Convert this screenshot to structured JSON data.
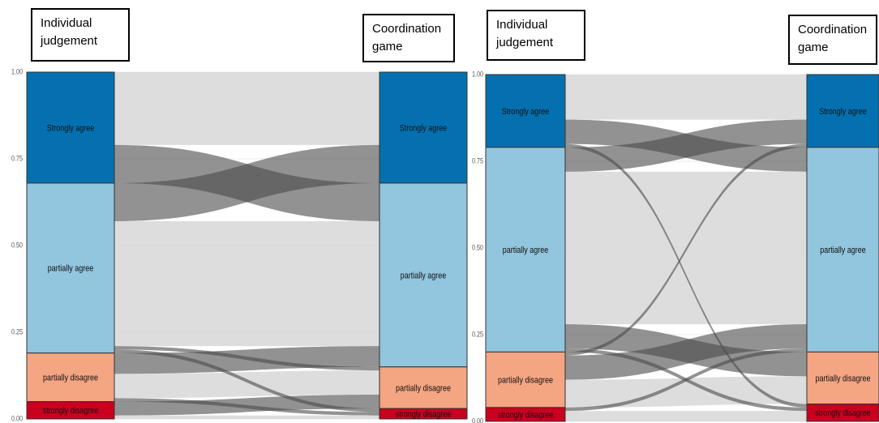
{
  "chart_data": [
    {
      "type": "alluvial",
      "axis_labels": [
        "Individual judgement",
        "Coordination game"
      ],
      "categories": [
        "Strongly agree",
        "partially agree",
        "partially disagree",
        "strongly disagree"
      ],
      "colors": [
        "#0570b0",
        "#92c5de",
        "#f4a582",
        "#ca0020"
      ],
      "flow_colors": {
        "same": "#d4d4d4",
        "cross": "#4a4a4a"
      },
      "flows": [
        {
          "from": 0,
          "to": 0,
          "value": 0.21
        },
        {
          "from": 0,
          "to": 1,
          "value": 0.11
        },
        {
          "from": 1,
          "to": 0,
          "value": 0.11
        },
        {
          "from": 1,
          "to": 1,
          "value": 0.36
        },
        {
          "from": 1,
          "to": 2,
          "value": 0.01
        },
        {
          "from": 1,
          "to": 3,
          "value": 0.01
        },
        {
          "from": 2,
          "to": 1,
          "value": 0.06
        },
        {
          "from": 2,
          "to": 2,
          "value": 0.07
        },
        {
          "from": 2,
          "to": 3,
          "value": 0.01
        },
        {
          "from": 3,
          "to": 2,
          "value": 0.04
        },
        {
          "from": 3,
          "to": 3,
          "value": 0.01
        }
      ],
      "ylim": [
        0,
        1
      ],
      "yticks": [
        {
          "value": 0,
          "label": "0.00"
        },
        {
          "value": 0.25,
          "label": "0.25"
        },
        {
          "value": 0.5,
          "label": "0.50"
        },
        {
          "value": 0.75,
          "label": "0.75"
        },
        {
          "value": 1,
          "label": "1.00"
        }
      ]
    },
    {
      "type": "alluvial",
      "axis_labels": [
        "Individual judgement",
        "Coordination game"
      ],
      "categories": [
        "Strongly agree",
        "partially agree",
        "partially disagree",
        "strongly disagree"
      ],
      "colors": [
        "#0570b0",
        "#92c5de",
        "#f4a582",
        "#ca0020"
      ],
      "flow_colors": {
        "same": "#d4d4d4",
        "cross": "#4a4a4a"
      },
      "flows": [
        {
          "from": 0,
          "to": 0,
          "value": 0.13
        },
        {
          "from": 0,
          "to": 1,
          "value": 0.07
        },
        {
          "from": 0,
          "to": 3,
          "value": 0.01
        },
        {
          "from": 1,
          "to": 0,
          "value": 0.07
        },
        {
          "from": 1,
          "to": 1,
          "value": 0.44
        },
        {
          "from": 1,
          "to": 2,
          "value": 0.07
        },
        {
          "from": 1,
          "to": 3,
          "value": 0.01
        },
        {
          "from": 2,
          "to": 0,
          "value": 0.01
        },
        {
          "from": 2,
          "to": 1,
          "value": 0.07
        },
        {
          "from": 2,
          "to": 2,
          "value": 0.08
        },
        {
          "from": 3,
          "to": 1,
          "value": 0.01
        },
        {
          "from": 3,
          "to": 3,
          "value": 0.03
        }
      ],
      "ylim": [
        0,
        1
      ],
      "yticks": [
        {
          "value": 0,
          "label": "0.00"
        },
        {
          "value": 0.25,
          "label": "0.25"
        },
        {
          "value": 0.5,
          "label": "0.50"
        },
        {
          "value": 0.75,
          "label": "0.75"
        },
        {
          "value": 1,
          "label": "1.00"
        }
      ]
    }
  ]
}
